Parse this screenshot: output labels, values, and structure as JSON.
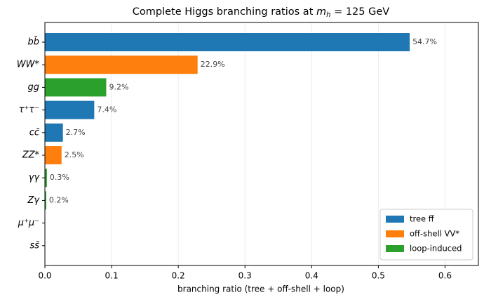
{
  "chart_data": {
    "type": "barh",
    "title": [
      "Complete Higgs branching ratios at ",
      "m",
      "h",
      " = 125 GeV"
    ],
    "xlabel": "branching ratio (tree + off-shell + loop)",
    "categories": [
      "bb̄",
      "WW*",
      "gg",
      "τ⁺τ⁻",
      "cc̄",
      "ZZ*",
      "γγ",
      "Zγ",
      "μ⁺μ⁻",
      "ss̄"
    ],
    "values": [
      0.547,
      0.229,
      0.092,
      0.074,
      0.027,
      0.025,
      0.003,
      0.002,
      0.0002,
      0.0002
    ],
    "value_labels": [
      "54.7%",
      "22.9%",
      "9.2%",
      "7.4%",
      "2.7%",
      "2.5%",
      "0.3%",
      "0.2%",
      null,
      null
    ],
    "colors": [
      "#1f77b4",
      "#ff7f0e",
      "#2ca02c",
      "#1f77b4",
      "#1f77b4",
      "#ff7f0e",
      "#2ca02c",
      "#2ca02c",
      "#1f77b4",
      "#1f77b4"
    ],
    "legend": [
      {
        "name": "tree ff̄",
        "color": "#1f77b4"
      },
      {
        "name": "off-shell VV*",
        "color": "#ff7f0e"
      },
      {
        "name": "loop-induced",
        "color": "#2ca02c"
      }
    ],
    "legend_position": "lower right",
    "xlim": [
      0,
      0.65
    ],
    "xticks": [
      {
        "value": 0,
        "label": "0.0"
      },
      0.1,
      0.2,
      0.3,
      0.4,
      0.5,
      0.6
    ],
    "grid": true
  }
}
